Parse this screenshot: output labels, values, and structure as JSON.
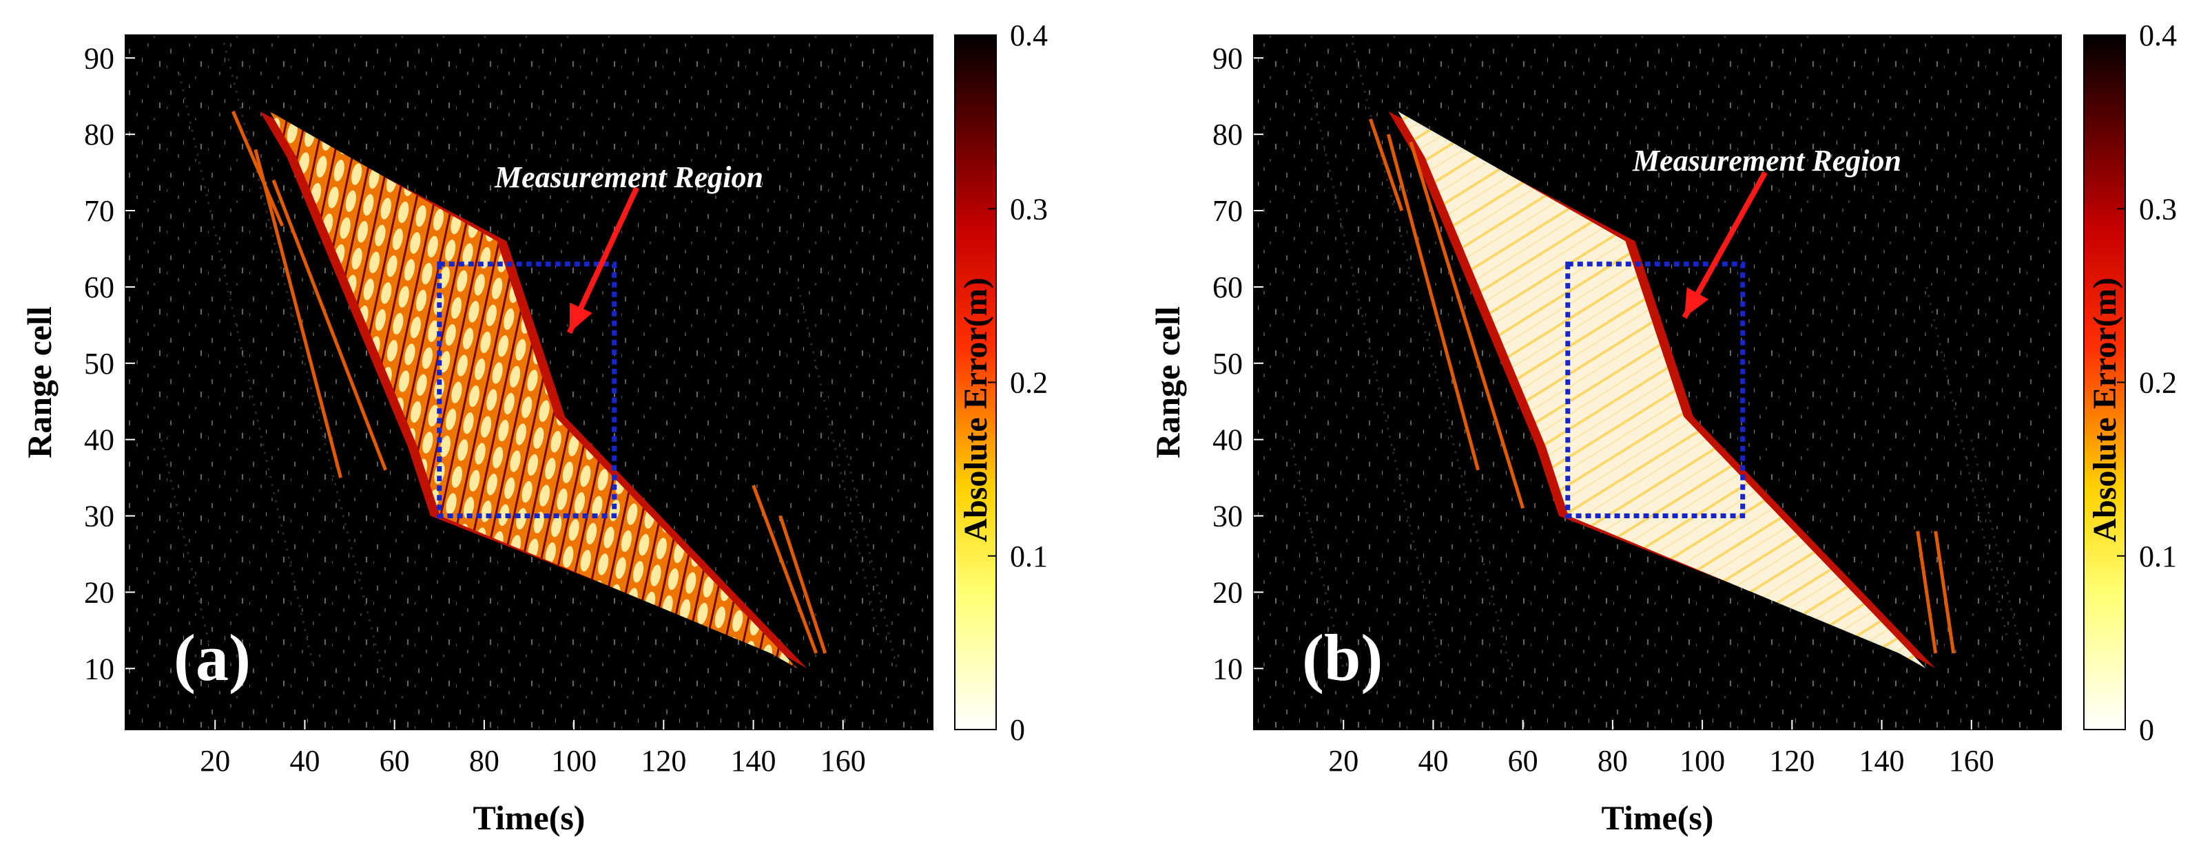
{
  "chart_data": [
    {
      "type": "heatmap",
      "panel_label": "(a)",
      "xlabel": "Time(s)",
      "ylabel": "Range cell",
      "xlim": [
        0,
        180
      ],
      "ylim": [
        2,
        93
      ],
      "xticks": [
        20,
        40,
        60,
        80,
        100,
        120,
        140,
        160
      ],
      "yticks": [
        10,
        20,
        30,
        40,
        50,
        60,
        70,
        80,
        90
      ],
      "colorbar": {
        "label": "Absolute Error(m)",
        "range": [
          0,
          0.4
        ],
        "ticks": [
          0,
          0.1,
          0.2,
          0.3,
          0.4
        ],
        "colormap": "inverted hot"
      },
      "annotation": {
        "text": "Measurement Region",
        "arrow_from": [
          114,
          73
        ],
        "arrow_to": [
          99,
          54
        ]
      },
      "measurement_region": {
        "t_start": 70,
        "t_end": 109,
        "range_start": 30,
        "range_end": 63
      },
      "data_region": {
        "t_range": [
          28,
          150
        ],
        "range_range": [
          11,
          83
        ],
        "description": "parallelogram of measured data; rippled error pattern"
      }
    },
    {
      "type": "heatmap",
      "panel_label": "(b)",
      "xlabel": "Time(s)",
      "ylabel": "Range cell",
      "xlim": [
        0,
        180
      ],
      "ylim": [
        2,
        93
      ],
      "xticks": [
        20,
        40,
        60,
        80,
        100,
        120,
        140,
        160
      ],
      "yticks": [
        10,
        20,
        30,
        40,
        50,
        60,
        70,
        80,
        90
      ],
      "colorbar": {
        "label": "Absolute Error(m)",
        "range": [
          0,
          0.4
        ],
        "ticks": [
          0,
          0.1,
          0.2,
          0.3,
          0.4
        ],
        "colormap": "inverted hot"
      },
      "annotation": {
        "text": "Measurement Region",
        "arrow_from": [
          114,
          75
        ],
        "arrow_to": [
          96,
          56
        ]
      },
      "measurement_region": {
        "t_start": 70,
        "t_end": 109,
        "range_start": 30,
        "range_end": 63
      },
      "data_region": {
        "t_range": [
          28,
          150
        ],
        "range_range": [
          11,
          83
        ],
        "description": "parallelogram of measured data; smooth low error with diagonal streaks"
      }
    }
  ]
}
